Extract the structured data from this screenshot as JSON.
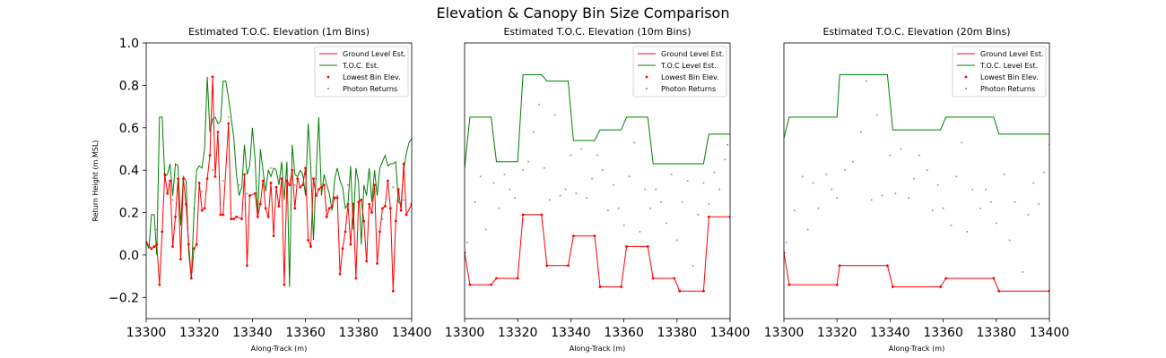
{
  "figure": {
    "title": "Elevation & Canopy Bin Size Comparison"
  },
  "chart_data": [
    {
      "type": "line",
      "title": "Estimated T.O.C. Elevation (1m Bins)",
      "xlabel": "Along-Track (m)",
      "ylabel": "Return Height (m MSL)",
      "xlim": [
        13300,
        13400
      ],
      "ylim": [
        -0.3,
        1.0
      ],
      "xticks": [
        "13300",
        "13320",
        "13340",
        "13360",
        "13380",
        "13400"
      ],
      "yticks": [
        "−0.2",
        "0.0",
        "0.2",
        "0.4",
        "0.6",
        "0.8",
        "1.0"
      ],
      "legend_position": "top-right",
      "series": [
        {
          "name": "Ground Level Est.",
          "kind": "line",
          "color": "#ff0000",
          "x": [
            13300,
            13302,
            13303,
            13304,
            13305,
            13306,
            13307,
            13308,
            13309,
            13310,
            13311,
            13312,
            13313,
            13314,
            13315,
            13316,
            13317,
            13318,
            13319,
            13320,
            13321,
            13322,
            13323,
            13324,
            13325,
            13326,
            13327,
            13328,
            13329,
            13331,
            13332,
            13333,
            13334,
            13336,
            13337,
            13338,
            13339,
            13341,
            13342,
            13343,
            13344,
            13345,
            13346,
            13347,
            13348,
            13349,
            13350,
            13351,
            13352,
            13353,
            13354,
            13355,
            13356,
            13357,
            13358,
            13359,
            13360,
            13361,
            13362,
            13363,
            13364,
            13365,
            13366,
            13367,
            13368,
            13369,
            13370,
            13371,
            13372,
            13373,
            13374,
            13375,
            13376,
            13377,
            13378,
            13379,
            13380,
            13381,
            13382,
            13383,
            13384,
            13385,
            13386,
            13387,
            13388,
            13389,
            13390,
            13391,
            13392,
            13393,
            13394,
            13395,
            13396,
            13397,
            13398,
            13400
          ],
          "y": [
            0.06,
            0.03,
            0.04,
            0.05,
            -0.14,
            0.11,
            0.38,
            0.29,
            0.35,
            0.04,
            0.18,
            0.36,
            -0.02,
            0.36,
            0.24,
            0.05,
            -0.11,
            0.03,
            0.05,
            0.34,
            0.21,
            0.22,
            0.36,
            0.47,
            0.84,
            0.37,
            0.58,
            0.19,
            0.19,
            0.62,
            0.17,
            0.17,
            0.18,
            0.17,
            0.38,
            -0.05,
            0.28,
            0.29,
            0.18,
            0.24,
            0.35,
            0.22,
            0.18,
            0.34,
            0.09,
            0.32,
            0.23,
            0.36,
            -0.14,
            0.35,
            0.33,
            0.4,
            0.22,
            0.36,
            0.32,
            0.33,
            0.41,
            0.07,
            0.04,
            0.36,
            0.28,
            0.31,
            0.32,
            0.33,
            0.18,
            0.22,
            0.23,
            0.27,
            0.27,
            -0.09,
            0.03,
            0.11,
            0.24,
            0.05,
            0.24,
            -0.11,
            0.25,
            0.26,
            0.16,
            -0.03,
            0.24,
            0.2,
            0.33,
            -0.04,
            0.11,
            0.22,
            0.23,
            0.35,
            0.22,
            -0.17,
            0.16,
            0.31,
            0.21,
            0.43,
            0.19,
            0.24
          ]
        },
        {
          "name": "T.O.C. Est.",
          "kind": "line",
          "color": "#008000",
          "x": [
            13300,
            13301,
            13302,
            13303,
            13304,
            13305,
            13306,
            13307,
            13308,
            13309,
            13310,
            13311,
            13312,
            13313,
            13314,
            13315,
            13316,
            13317,
            13318,
            13319,
            13320,
            13321,
            13322,
            13323,
            13324,
            13325,
            13326,
            13327,
            13328,
            13329,
            13330,
            13331,
            13332,
            13333,
            13334,
            13335,
            13336,
            13337,
            13338,
            13339,
            13340,
            13341,
            13342,
            13343,
            13344,
            13345,
            13346,
            13347,
            13348,
            13349,
            13350,
            13351,
            13352,
            13353,
            13354,
            13355,
            13356,
            13357,
            13358,
            13359,
            13360,
            13361,
            13362,
            13363,
            13364,
            13365,
            13366,
            13367,
            13368,
            13369,
            13370,
            13371,
            13372,
            13373,
            13374,
            13375,
            13376,
            13377,
            13378,
            13379,
            13380,
            13381,
            13382,
            13383,
            13384,
            13385,
            13386,
            13387,
            13388,
            13389,
            13390,
            13391,
            13392,
            13393,
            13394,
            13395,
            13396,
            13397,
            13398,
            13399,
            13400
          ],
          "y": [
            0.06,
            0.03,
            0.19,
            0.19,
            0.0,
            0.65,
            0.65,
            0.37,
            0.38,
            0.43,
            0.28,
            0.43,
            0.42,
            0.14,
            0.37,
            0.35,
            0.01,
            -0.11,
            0.2,
            0.4,
            0.42,
            0.41,
            0.5,
            0.84,
            0.58,
            0.64,
            0.65,
            0.62,
            0.63,
            0.82,
            0.82,
            0.74,
            0.65,
            0.55,
            0.38,
            0.28,
            0.32,
            0.52,
            0.38,
            0.42,
            0.6,
            0.45,
            0.18,
            0.5,
            0.4,
            0.3,
            0.4,
            0.37,
            0.41,
            0.4,
            0.33,
            0.44,
            0.26,
            0.44,
            -0.15,
            0.52,
            0.38,
            0.37,
            0.4,
            0.38,
            0.28,
            0.62,
            0.42,
            0.07,
            0.38,
            0.65,
            0.28,
            0.38,
            0.33,
            0.29,
            0.21,
            0.36,
            0.41,
            0.35,
            0.32,
            0.22,
            0.24,
            0.42,
            0.12,
            0.41,
            0.34,
            0.05,
            0.33,
            0.28,
            0.41,
            0.25,
            0.4,
            0.28,
            0.41,
            0.44,
            0.47,
            0.42,
            0.43,
            0.43,
            0.44,
            0.25,
            0.24,
            0.4,
            0.48,
            0.53,
            0.55
          ]
        },
        {
          "name": "Lowest Bin Elev.",
          "kind": "scatter",
          "color": "#ff0000",
          "note": "same points as ground level estimate"
        },
        {
          "name": "Photon Returns",
          "kind": "scatter",
          "color": "#7f7f7f",
          "x": [
            13304,
            13310,
            13312,
            13318,
            13321,
            13325,
            13329,
            13331,
            13335,
            13338,
            13343,
            13347,
            13352,
            13356,
            13360,
            13364,
            13368,
            13372,
            13376,
            13380,
            13384,
            13389,
            13393,
            13397
          ],
          "y": [
            0.12,
            0.26,
            0.31,
            0.22,
            0.3,
            0.4,
            0.35,
            0.65,
            0.33,
            0.29,
            0.25,
            0.41,
            0.3,
            0.33,
            0.38,
            0.36,
            0.21,
            0.28,
            0.33,
            0.25,
            0.22,
            0.17,
            0.32,
            0.26
          ]
        }
      ]
    },
    {
      "type": "line",
      "title": "Estimated T.O.C. Elevation (10m Bins)",
      "xlabel": "Along-Track (m)",
      "ylabel": "",
      "xlim": [
        13300,
        13400
      ],
      "ylim": [
        -0.3,
        1.0
      ],
      "xticks": [
        "13300",
        "13320",
        "13340",
        "13360",
        "13380",
        "13400"
      ],
      "yticks": [],
      "legend_position": "top-right",
      "series": [
        {
          "name": "Ground Level Est.",
          "kind": "line",
          "color": "#ff0000",
          "x": [
            13300,
            13302,
            13310,
            13312,
            13320,
            13322,
            13329,
            13331,
            13339,
            13341,
            13349,
            13351,
            13359,
            13361,
            13369,
            13371,
            13379,
            13381,
            13390,
            13392,
            13400
          ],
          "y": [
            0.01,
            -0.14,
            -0.14,
            -0.11,
            -0.11,
            0.19,
            0.19,
            -0.05,
            -0.05,
            0.09,
            0.09,
            -0.15,
            -0.15,
            0.04,
            0.04,
            -0.11,
            -0.11,
            -0.17,
            -0.17,
            0.18,
            0.18
          ]
        },
        {
          "name": "T.O.C Level Est.",
          "kind": "line",
          "color": "#008000",
          "x": [
            13300,
            13302,
            13310,
            13312,
            13320,
            13322,
            13329,
            13331,
            13339,
            13341,
            13349,
            13351,
            13359,
            13361,
            13369,
            13371,
            13379,
            13381,
            13390,
            13392,
            13400
          ],
          "y": [
            0.41,
            0.65,
            0.65,
            0.44,
            0.44,
            0.85,
            0.85,
            0.82,
            0.82,
            0.54,
            0.54,
            0.59,
            0.59,
            0.65,
            0.65,
            0.43,
            0.43,
            0.43,
            0.43,
            0.57,
            0.57
          ]
        },
        {
          "name": "Lowest Bin Elev.",
          "kind": "scatter",
          "color": "#ff0000",
          "note": "same points as ground level estimate"
        },
        {
          "name": "Photon Returns",
          "kind": "scatter",
          "color": "#7f7f7f",
          "x": [
            13301,
            13304,
            13306,
            13308,
            13311,
            13313,
            13315,
            13317,
            13319,
            13322,
            13324,
            13326,
            13328,
            13330,
            13332,
            13334,
            13336,
            13338,
            13340,
            13342,
            13344,
            13346,
            13348,
            13350,
            13352,
            13354,
            13356,
            13358,
            13360,
            13362,
            13364,
            13366,
            13368,
            13370,
            13372,
            13374,
            13376,
            13378,
            13380,
            13382,
            13384,
            13386,
            13388,
            13390,
            13392,
            13394,
            13396,
            13398,
            13399
          ],
          "y": [
            0.06,
            0.25,
            0.37,
            0.12,
            0.34,
            0.22,
            0.38,
            0.31,
            0.27,
            0.4,
            0.44,
            0.58,
            0.71,
            0.41,
            0.26,
            0.66,
            0.28,
            0.31,
            0.47,
            0.29,
            0.5,
            0.27,
            0.36,
            0.47,
            0.4,
            0.21,
            0.33,
            0.22,
            0.14,
            0.37,
            0.53,
            0.11,
            0.31,
            0.22,
            0.31,
            0.25,
            0.15,
            0.38,
            0.07,
            0.25,
            0.35,
            -0.05,
            0.19,
            0.34,
            0.24,
            0.39,
            0.31,
            0.45,
            0.52
          ]
        }
      ]
    },
    {
      "type": "line",
      "title": "Estimated T.O.C. Elevation (20m Bins)",
      "xlabel": "Along-Track (m)",
      "ylabel": "",
      "xlim": [
        13300,
        13400
      ],
      "ylim": [
        -0.3,
        1.0
      ],
      "xticks": [
        "13300",
        "13320",
        "13340",
        "13360",
        "13380",
        "13400"
      ],
      "yticks": [],
      "legend_position": "top-right",
      "series": [
        {
          "name": "Ground Level Est.",
          "kind": "line",
          "color": "#ff0000",
          "x": [
            13300,
            13302,
            13320,
            13321,
            13339,
            13341,
            13359,
            13361,
            13379,
            13381,
            13400
          ],
          "y": [
            0.01,
            -0.14,
            -0.14,
            -0.05,
            -0.05,
            -0.15,
            -0.15,
            -0.11,
            -0.11,
            -0.17,
            -0.17
          ]
        },
        {
          "name": "T.O.C. Level Est.",
          "kind": "line",
          "color": "#008000",
          "x": [
            13300,
            13302,
            13320,
            13321,
            13339,
            13341,
            13359,
            13361,
            13379,
            13381,
            13400
          ],
          "y": [
            0.55,
            0.65,
            0.65,
            0.85,
            0.85,
            0.59,
            0.59,
            0.65,
            0.65,
            0.57,
            0.57
          ]
        },
        {
          "name": "Lowest Bin Elev.",
          "kind": "scatter",
          "color": "#ff0000",
          "note": "same points as ground level estimate"
        },
        {
          "name": "Photon Returns",
          "kind": "scatter",
          "color": "#7f7f7f",
          "x": [
            13301,
            13304,
            13307,
            13309,
            13311,
            13313,
            13316,
            13318,
            13320,
            13323,
            13326,
            13329,
            13331,
            13333,
            13335,
            13337,
            13340,
            13342,
            13344,
            13347,
            13349,
            13351,
            13354,
            13356,
            13358,
            13360,
            13363,
            13365,
            13367,
            13369,
            13371,
            13374,
            13376,
            13378,
            13380,
            13383,
            13385,
            13387,
            13390,
            13392,
            13394,
            13396,
            13398,
            13400
          ],
          "y": [
            0.06,
            0.21,
            0.37,
            0.12,
            0.34,
            0.22,
            0.38,
            0.31,
            0.27,
            0.4,
            0.44,
            0.58,
            0.82,
            0.26,
            0.66,
            0.28,
            0.47,
            0.29,
            0.5,
            0.27,
            0.36,
            0.47,
            0.4,
            0.21,
            0.33,
            0.22,
            0.14,
            0.37,
            0.53,
            0.11,
            0.31,
            0.22,
            0.31,
            0.25,
            0.15,
            0.38,
            0.07,
            0.25,
            -0.08,
            0.19,
            0.34,
            0.24,
            0.39,
            0.52
          ]
        }
      ]
    }
  ]
}
